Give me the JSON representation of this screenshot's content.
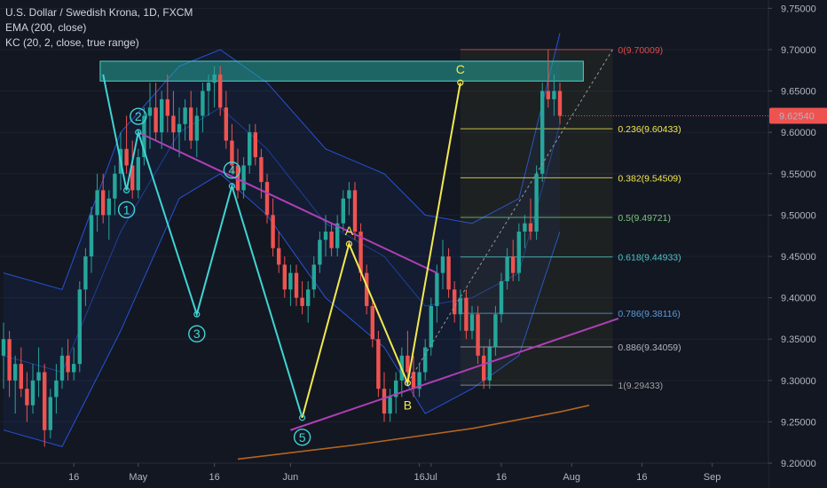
{
  "legend": {
    "title": "U.S. Dollar / Swedish Krona, 1D, FXCM",
    "ema": "EMA (200, close)",
    "kc": "KC (20, 2, close, true range)"
  },
  "colors": {
    "background": "#131722",
    "up": "#26a69a",
    "down": "#ef5350",
    "channel": "#2962ff",
    "ema": "#b5651d",
    "wave": "#3fd4d4",
    "abc": "#f2e94e",
    "trend": "#b03fb5",
    "zone": "#26a69a"
  },
  "price_badge": "9.62540",
  "chart_data": {
    "type": "candlestick",
    "symbol": "USDSEK",
    "ylim": [
      9.17,
      9.76
    ],
    "y_ticks": [
      "9.20000",
      "9.25000",
      "9.30000",
      "9.35000",
      "9.40000",
      "9.45000",
      "9.50000",
      "9.55000",
      "9.60000",
      "9.65000",
      "9.70000",
      "9.75000"
    ],
    "x_ticks": [
      "16",
      "May",
      "16",
      "Jun",
      "16",
      "Jul",
      "16",
      "Aug",
      "16",
      "Sep"
    ],
    "candles": [
      [
        9.33,
        9.37,
        9.29,
        9.35
      ],
      [
        9.35,
        9.36,
        9.28,
        9.3
      ],
      [
        9.3,
        9.33,
        9.26,
        9.32
      ],
      [
        9.32,
        9.34,
        9.28,
        9.29
      ],
      [
        9.29,
        9.31,
        9.25,
        9.27
      ],
      [
        9.27,
        9.32,
        9.26,
        9.3
      ],
      [
        9.3,
        9.34,
        9.28,
        9.31
      ],
      [
        9.31,
        9.32,
        9.22,
        9.24
      ],
      [
        9.24,
        9.29,
        9.23,
        9.28
      ],
      [
        9.28,
        9.32,
        9.26,
        9.3
      ],
      [
        9.3,
        9.34,
        9.29,
        9.33
      ],
      [
        9.33,
        9.35,
        9.3,
        9.31
      ],
      [
        9.31,
        9.34,
        9.3,
        9.32
      ],
      [
        9.32,
        9.42,
        9.31,
        9.41
      ],
      [
        9.41,
        9.46,
        9.39,
        9.45
      ],
      [
        9.45,
        9.51,
        9.43,
        9.5
      ],
      [
        9.5,
        9.55,
        9.48,
        9.53
      ],
      [
        9.53,
        9.55,
        9.49,
        9.5
      ],
      [
        9.5,
        9.53,
        9.47,
        9.52
      ],
      [
        9.52,
        9.56,
        9.5,
        9.55
      ],
      [
        9.55,
        9.6,
        9.53,
        9.58
      ],
      [
        9.58,
        9.62,
        9.55,
        9.56
      ],
      [
        9.56,
        9.59,
        9.52,
        9.53
      ],
      [
        9.53,
        9.58,
        9.52,
        9.57
      ],
      [
        9.57,
        9.63,
        9.56,
        9.62
      ],
      [
        9.62,
        9.66,
        9.58,
        9.63
      ],
      [
        9.63,
        9.66,
        9.59,
        9.6
      ],
      [
        9.6,
        9.65,
        9.58,
        9.64
      ],
      [
        9.64,
        9.67,
        9.6,
        9.62
      ],
      [
        9.62,
        9.65,
        9.58,
        9.6
      ],
      [
        9.6,
        9.63,
        9.57,
        9.61
      ],
      [
        9.61,
        9.64,
        9.59,
        9.63
      ],
      [
        9.63,
        9.65,
        9.58,
        9.59
      ],
      [
        9.59,
        9.63,
        9.57,
        9.62
      ],
      [
        9.62,
        9.66,
        9.6,
        9.65
      ],
      [
        9.65,
        9.67,
        9.62,
        9.66
      ],
      [
        9.66,
        9.68,
        9.63,
        9.67
      ],
      [
        9.67,
        9.68,
        9.62,
        9.63
      ],
      [
        9.63,
        9.65,
        9.58,
        9.59
      ],
      [
        9.59,
        9.61,
        9.55,
        9.56
      ],
      [
        9.56,
        9.58,
        9.52,
        9.53
      ],
      [
        9.53,
        9.57,
        9.52,
        9.56
      ],
      [
        9.56,
        9.61,
        9.55,
        9.6
      ],
      [
        9.6,
        9.61,
        9.56,
        9.57
      ],
      [
        9.57,
        9.58,
        9.52,
        9.54
      ],
      [
        9.54,
        9.55,
        9.49,
        9.5
      ],
      [
        9.5,
        9.52,
        9.45,
        9.46
      ],
      [
        9.46,
        9.48,
        9.43,
        9.44
      ],
      [
        9.44,
        9.45,
        9.4,
        9.41
      ],
      [
        9.41,
        9.44,
        9.39,
        9.43
      ],
      [
        9.43,
        9.44,
        9.39,
        9.4
      ],
      [
        9.4,
        9.42,
        9.38,
        9.39
      ],
      [
        9.39,
        9.42,
        9.37,
        9.41
      ],
      [
        9.41,
        9.45,
        9.4,
        9.44
      ],
      [
        9.44,
        9.48,
        9.43,
        9.47
      ],
      [
        9.47,
        9.5,
        9.45,
        9.48
      ],
      [
        9.48,
        9.49,
        9.45,
        9.46
      ],
      [
        9.46,
        9.5,
        9.45,
        9.49
      ],
      [
        9.49,
        9.53,
        9.48,
        9.52
      ],
      [
        9.52,
        9.54,
        9.5,
        9.53
      ],
      [
        9.53,
        9.54,
        9.47,
        9.48
      ],
      [
        9.48,
        9.49,
        9.42,
        9.43
      ],
      [
        9.43,
        9.44,
        9.38,
        9.39
      ],
      [
        9.39,
        9.4,
        9.34,
        9.35
      ],
      [
        9.35,
        9.36,
        9.28,
        9.29
      ],
      [
        9.29,
        9.31,
        9.25,
        9.26
      ],
      [
        9.26,
        9.29,
        9.25,
        9.28
      ],
      [
        9.28,
        9.31,
        9.26,
        9.3
      ],
      [
        9.3,
        9.34,
        9.28,
        9.33
      ],
      [
        9.33,
        9.36,
        9.3,
        9.31
      ],
      [
        9.31,
        9.33,
        9.28,
        9.29
      ],
      [
        9.29,
        9.32,
        9.28,
        9.31
      ],
      [
        9.31,
        9.35,
        9.3,
        9.34
      ],
      [
        9.34,
        9.4,
        9.33,
        9.39
      ],
      [
        9.39,
        9.44,
        9.37,
        9.43
      ],
      [
        9.43,
        9.47,
        9.41,
        9.45
      ],
      [
        9.45,
        9.46,
        9.4,
        9.41
      ],
      [
        9.41,
        9.42,
        9.37,
        9.38
      ],
      [
        9.38,
        9.41,
        9.36,
        9.4
      ],
      [
        9.4,
        9.41,
        9.35,
        9.36
      ],
      [
        9.36,
        9.39,
        9.35,
        9.38
      ],
      [
        9.38,
        9.39,
        9.32,
        9.33
      ],
      [
        9.33,
        9.34,
        9.29,
        9.3
      ],
      [
        9.3,
        9.35,
        9.29,
        9.34
      ],
      [
        9.34,
        9.39,
        9.33,
        9.38
      ],
      [
        9.38,
        9.43,
        9.37,
        9.42
      ],
      [
        9.42,
        9.46,
        9.41,
        9.45
      ],
      [
        9.45,
        9.47,
        9.42,
        9.43
      ],
      [
        9.43,
        9.49,
        9.42,
        9.48
      ],
      [
        9.48,
        9.5,
        9.46,
        9.49
      ],
      [
        9.49,
        9.52,
        9.47,
        9.48
      ],
      [
        9.48,
        9.56,
        9.47,
        9.55
      ],
      [
        9.55,
        9.66,
        9.54,
        9.65
      ],
      [
        9.65,
        9.7,
        9.63,
        9.64
      ],
      [
        9.64,
        9.67,
        9.62,
        9.65
      ],
      [
        9.65,
        9.66,
        9.61,
        9.62
      ]
    ],
    "ema200": [
      [
        40,
        9.205
      ],
      [
        60,
        9.222
      ],
      [
        80,
        9.242
      ],
      [
        95,
        9.262
      ],
      [
        100,
        9.27
      ]
    ],
    "keltner": {
      "upper": [
        [
          0,
          9.43
        ],
        [
          10,
          9.41
        ],
        [
          20,
          9.6
        ],
        [
          30,
          9.68
        ],
        [
          37,
          9.7
        ],
        [
          45,
          9.66
        ],
        [
          55,
          9.58
        ],
        [
          65,
          9.55
        ],
        [
          72,
          9.5
        ],
        [
          80,
          9.49
        ],
        [
          88,
          9.52
        ],
        [
          95,
          9.72
        ]
      ],
      "middle": [
        [
          0,
          9.33
        ],
        [
          10,
          9.31
        ],
        [
          20,
          9.48
        ],
        [
          30,
          9.6
        ],
        [
          37,
          9.63
        ],
        [
          45,
          9.58
        ],
        [
          55,
          9.49
        ],
        [
          65,
          9.45
        ],
        [
          72,
          9.39
        ],
        [
          80,
          9.4
        ],
        [
          88,
          9.43
        ],
        [
          95,
          9.61
        ]
      ],
      "lower": [
        [
          0,
          9.24
        ],
        [
          10,
          9.22
        ],
        [
          20,
          9.36
        ],
        [
          30,
          9.52
        ],
        [
          37,
          9.55
        ],
        [
          45,
          9.5
        ],
        [
          55,
          9.4
        ],
        [
          65,
          9.34
        ],
        [
          72,
          9.26
        ],
        [
          80,
          9.29
        ],
        [
          88,
          9.33
        ],
        [
          95,
          9.48
        ]
      ]
    },
    "resistance_zone": {
      "from": 9.662,
      "to": 9.686,
      "start": 16.5,
      "end": 99
    },
    "fib": {
      "start": 78,
      "end": 104,
      "levels": [
        {
          "ratio": 0,
          "price": 9.70009,
          "label": "0(9.70009)",
          "color": "#e04a4a"
        },
        {
          "ratio": 0.236,
          "price": 9.60433,
          "label": "0.236(9.60433)",
          "color": "#f2e94e"
        },
        {
          "ratio": 0.382,
          "price": 9.54509,
          "label": "0.382(9.54509)",
          "color": "#f2e94e"
        },
        {
          "ratio": 0.5,
          "price": 9.49721,
          "label": "0.5(9.49721)",
          "color": "#7cc87c"
        },
        {
          "ratio": 0.618,
          "price": 9.44933,
          "label": "0.618(9.44933)",
          "color": "#4fc3c3"
        },
        {
          "ratio": 0.786,
          "price": 9.38116,
          "label": "0.786(9.38116)",
          "color": "#5a9bd8"
        },
        {
          "ratio": 0.886,
          "price": 9.34059,
          "label": "0.886(9.34059)",
          "color": "#b2b5be"
        },
        {
          "ratio": 1,
          "price": 9.29433,
          "label": "1(9.29433)",
          "color": "#9e9e9e"
        }
      ]
    },
    "waves": [
      {
        "label": "1",
        "x": 21,
        "y": 9.53
      },
      {
        "label": "2",
        "x": 23,
        "y": 9.6
      },
      {
        "label": "3",
        "x": 33,
        "y": 9.38
      },
      {
        "label": "4",
        "x": 39,
        "y": 9.535
      },
      {
        "label": "5",
        "x": 51,
        "y": 9.255
      }
    ],
    "wave_path": [
      [
        17,
        9.67
      ],
      [
        21,
        9.53
      ],
      [
        23,
        9.6
      ],
      [
        33,
        9.38
      ],
      [
        39,
        9.535
      ],
      [
        51,
        9.255
      ]
    ],
    "abc": [
      {
        "label": "A",
        "x": 59,
        "y": 9.465
      },
      {
        "label": "B",
        "x": 69,
        "y": 9.297
      },
      {
        "label": "C",
        "x": 78,
        "y": 9.66
      }
    ],
    "abc_path": [
      [
        51,
        9.255
      ],
      [
        59,
        9.465
      ],
      [
        69,
        9.297
      ],
      [
        78,
        9.66
      ]
    ],
    "trendlines": [
      {
        "from": [
          23,
          9.6
        ],
        "to": [
          74,
          9.43
        ]
      },
      {
        "from": [
          49,
          9.24
        ],
        "to": [
          105,
          9.375
        ]
      }
    ],
    "projection": {
      "from": [
        69,
        9.297
      ],
      "to": [
        104,
        9.7
      ]
    }
  }
}
